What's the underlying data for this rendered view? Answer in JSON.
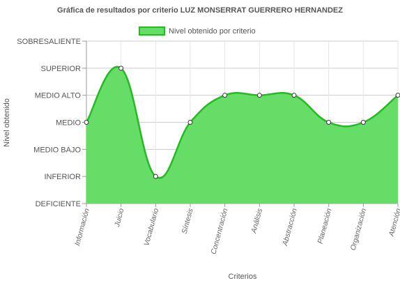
{
  "chart_data": {
    "type": "area",
    "title": "Gráfica de resultados por criterio LUZ MONSERRAT GUERRERO HERNANDEZ",
    "xlabel": "Criterios",
    "ylabel": "Nivel obtenido",
    "levels": [
      "DEFICIENTE",
      "INFERIOR",
      "MEDIO BAJO",
      "MEDIO",
      "MEDIO ALTO",
      "SUPERIOR",
      "SOBRESALIENTE"
    ],
    "categories": [
      "Información",
      "Juicio",
      "Vocabulario",
      "Síntesis",
      "Concentración",
      "Análisis",
      "Abstracción",
      "Planeación",
      "Organización",
      "Atención"
    ],
    "series": [
      {
        "name": "Nivel obtenido por criterio",
        "values": [
          3,
          5,
          1,
          3,
          4,
          4,
          4,
          3,
          3,
          4
        ],
        "fill": "#66dd66",
        "stroke": "#22bb22"
      }
    ],
    "ylim": [
      0,
      6
    ],
    "grid": true,
    "legend_position": "top"
  }
}
